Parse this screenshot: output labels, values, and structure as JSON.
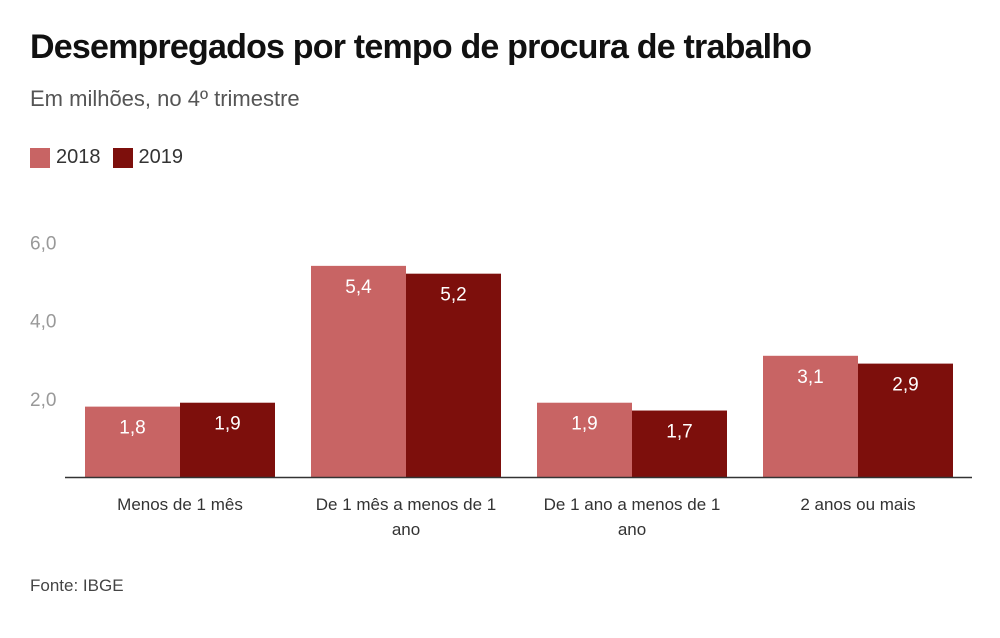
{
  "chart_data": {
    "type": "bar",
    "title": "Desempregados por tempo de procura de trabalho",
    "subtitle": "Em milhões, no 4º trimestre",
    "categories": [
      [
        "Menos de 1 mês"
      ],
      [
        "De 1 mês a menos de 1",
        "ano"
      ],
      [
        "De 1 ano a menos de 1",
        "ano"
      ],
      [
        "2 anos ou mais"
      ]
    ],
    "series": [
      {
        "name": "2018",
        "color": "#c86464",
        "values": [
          1.8,
          5.4,
          1.9,
          3.1
        ],
        "labels": [
          "1,8",
          "5,4",
          "1,9",
          "3,1"
        ]
      },
      {
        "name": "2019",
        "color": "#7d0f0c",
        "values": [
          1.9,
          5.2,
          1.7,
          2.9
        ],
        "labels": [
          "1,9",
          "5,2",
          "1,7",
          "2,9"
        ]
      }
    ],
    "yticks": [
      {
        "value": 2,
        "label": "2,0"
      },
      {
        "value": 4,
        "label": "4,0"
      },
      {
        "value": 6,
        "label": "6,0"
      }
    ],
    "ylim": [
      0,
      6
    ],
    "grid": false,
    "legend": "top-left",
    "source": "Fonte: IBGE"
  }
}
